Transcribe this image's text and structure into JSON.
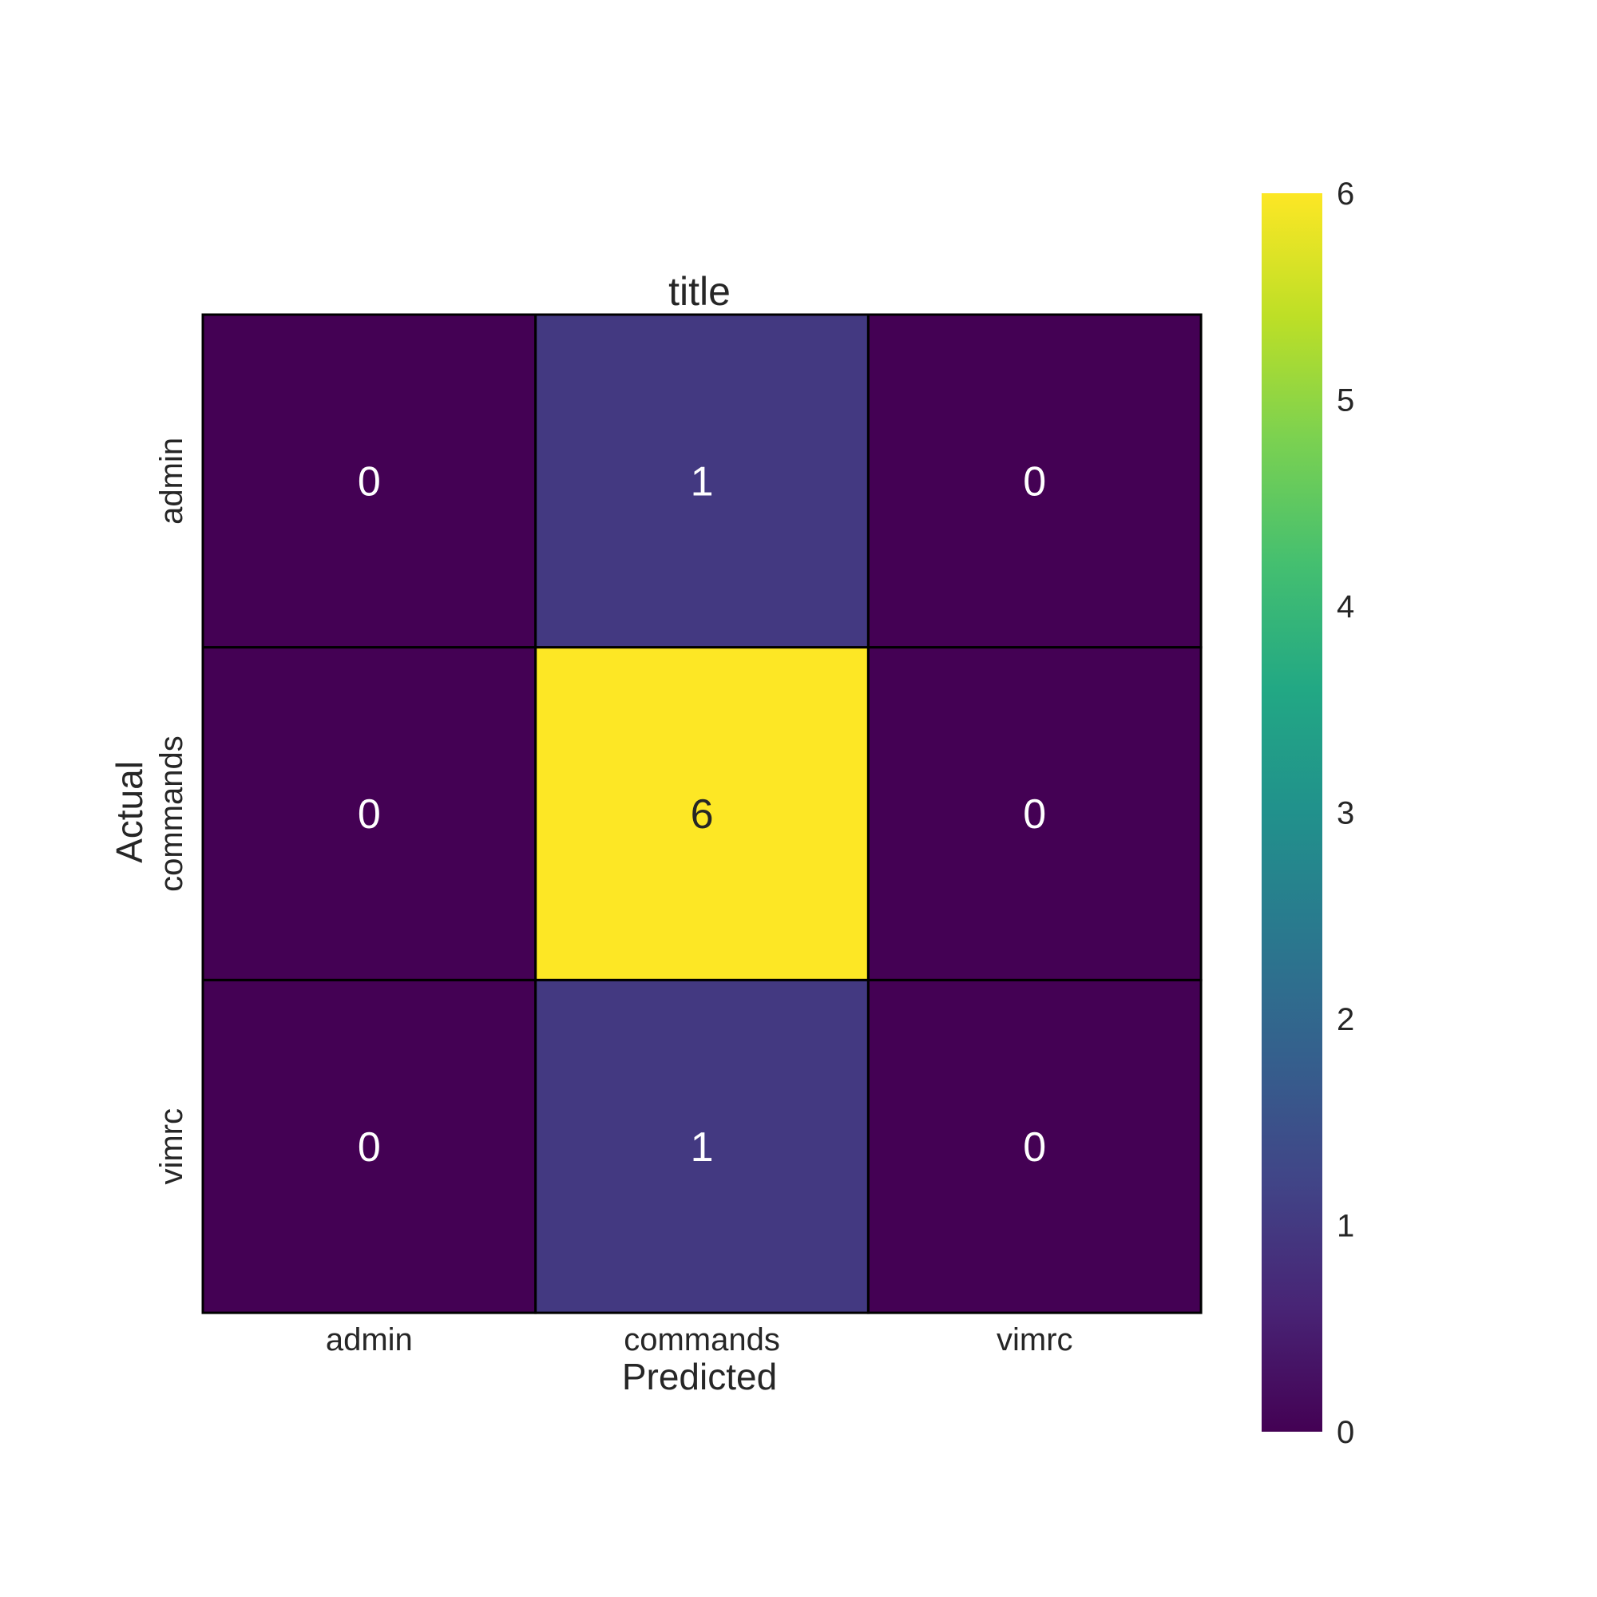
{
  "chart_data": {
    "type": "heatmap",
    "title": "title",
    "xlabel": "Predicted",
    "ylabel": "Actual",
    "x_categories": [
      "admin",
      "commands",
      "vimrc"
    ],
    "y_categories": [
      "admin",
      "commands",
      "vimrc"
    ],
    "values": [
      [
        0,
        1,
        0
      ],
      [
        0,
        6,
        0
      ],
      [
        0,
        1,
        0
      ]
    ],
    "colormap": "viridis",
    "colorbar": {
      "range": [
        0,
        6
      ],
      "ticks": [
        0,
        1,
        2,
        3,
        4,
        5,
        6
      ]
    },
    "colors": {
      "cell_border": "#000000",
      "dark_text": "#262626",
      "light_text": "#ffffff"
    }
  }
}
